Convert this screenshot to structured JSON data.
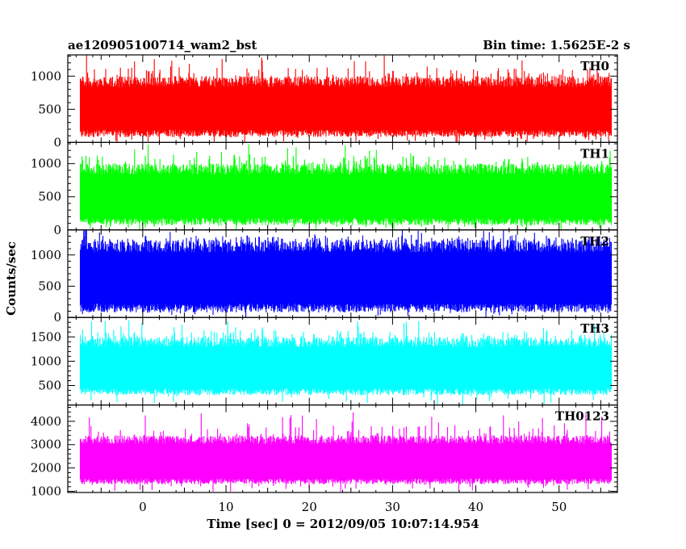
{
  "header": {
    "source_label": "ae120905100714_wam2_bst",
    "bin_time_label": "Bin time: 1.5625E-2 s"
  },
  "axes": {
    "ylabel": "Counts/sec",
    "xlabel": "Time [sec] 0 = 2012/09/05 10:07:14.954"
  },
  "chart_data": [
    {
      "type": "line",
      "name": "TH0",
      "color": "#ff0000",
      "xlim": [
        -9,
        57
      ],
      "ylim": [
        0,
        1320
      ],
      "data_xrange": [
        -7.5,
        56.3
      ],
      "typical_range": [
        80,
        1000
      ],
      "peak_max": 1320,
      "x_ticks": [
        0,
        10,
        20,
        30,
        40,
        50
      ],
      "y_ticks": [
        0,
        500,
        1000
      ],
      "y_tick_labels": [
        "0",
        "500",
        "1000"
      ]
    },
    {
      "type": "line",
      "name": "TH1",
      "color": "#00ff00",
      "xlim": [
        -9,
        57
      ],
      "ylim": [
        0,
        1320
      ],
      "data_xrange": [
        -7.5,
        56.3
      ],
      "typical_range": [
        70,
        1000
      ],
      "peak_max": 1300,
      "x_ticks": [
        0,
        10,
        20,
        30,
        40,
        50
      ],
      "y_ticks": [
        0,
        500,
        1000
      ],
      "y_tick_labels": [
        "0",
        "500",
        "1000"
      ]
    },
    {
      "type": "line",
      "name": "TH2",
      "color": "#0000ff",
      "xlim": [
        -9,
        57
      ],
      "ylim": [
        0,
        1400
      ],
      "data_xrange": [
        -7.5,
        56.3
      ],
      "typical_range": [
        80,
        1250
      ],
      "peak_max": 1400,
      "x_ticks": [
        0,
        10,
        20,
        30,
        40,
        50
      ],
      "y_ticks": [
        0,
        500,
        1000
      ],
      "y_tick_labels": [
        "0",
        "500",
        "1000"
      ]
    },
    {
      "type": "line",
      "name": "TH3",
      "color": "#00ffff",
      "xlim": [
        -9,
        57
      ],
      "ylim": [
        100,
        1900
      ],
      "data_xrange": [
        -7.5,
        56.3
      ],
      "typical_range": [
        300,
        1500
      ],
      "peak_max": 1850,
      "x_ticks": [
        0,
        10,
        20,
        30,
        40,
        50
      ],
      "y_ticks": [
        500,
        1000,
        1500
      ],
      "y_tick_labels": [
        "500",
        "1000",
        "1500"
      ]
    },
    {
      "type": "line",
      "name": "TH0123",
      "color": "#ff00ff",
      "xlim": [
        -9,
        57
      ],
      "ylim": [
        950,
        4700
      ],
      "data_xrange": [
        -7.5,
        56.3
      ],
      "typical_range": [
        1300,
        3400
      ],
      "peak_max": 4400,
      "x_ticks": [
        0,
        10,
        20,
        30,
        40,
        50
      ],
      "y_ticks": [
        1000,
        2000,
        3000,
        4000
      ],
      "y_tick_labels": [
        "1000",
        "2000",
        "3000",
        "4000"
      ]
    }
  ],
  "x_tick_labels": [
    "0",
    "10",
    "20",
    "30",
    "40",
    "50"
  ]
}
